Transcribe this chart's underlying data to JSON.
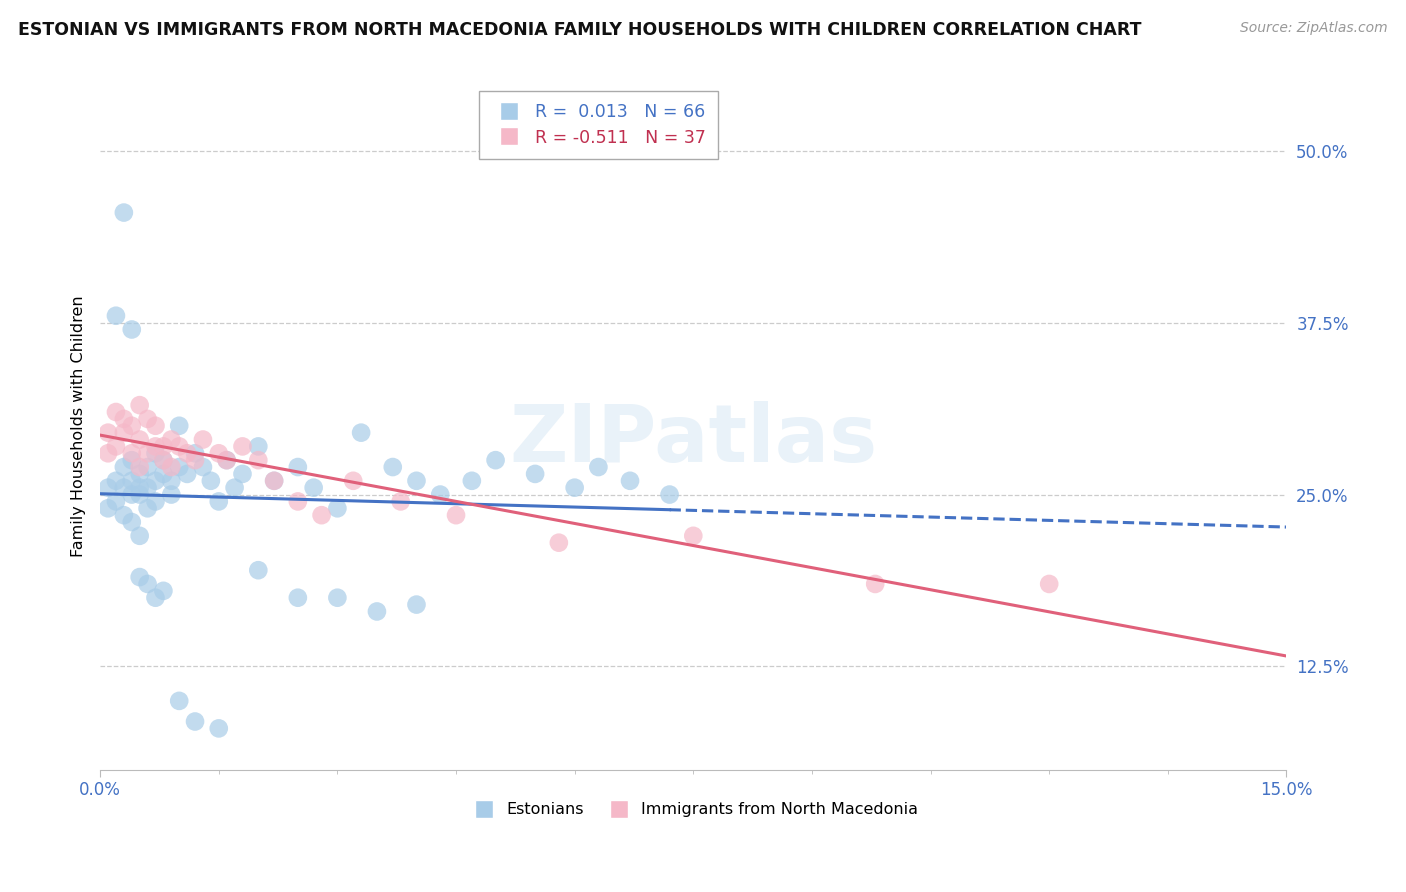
{
  "title": "ESTONIAN VS IMMIGRANTS FROM NORTH MACEDONIA FAMILY HOUSEHOLDS WITH CHILDREN CORRELATION CHART",
  "source": "Source: ZipAtlas.com",
  "ylabel": "Family Households with Children",
  "xlim": [
    0.0,
    0.15
  ],
  "ylim": [
    0.05,
    0.55
  ],
  "ytick_vals": [
    0.125,
    0.25,
    0.375,
    0.5
  ],
  "ytick_labels": [
    "12.5%",
    "25.0%",
    "37.5%",
    "50.0%"
  ],
  "xtick_labels": [
    "0.0%",
    "15.0%"
  ],
  "color_blue": "#a8cce8",
  "color_pink": "#f5b8c8",
  "line_blue_solid": "#4472c4",
  "line_blue_dash": "#4472c4",
  "line_pink": "#e0607a",
  "watermark": "ZIPatlas",
  "blue_R": 0.013,
  "blue_N": 66,
  "pink_R": -0.511,
  "pink_N": 37,
  "legend_label1": "R =  0.013   N = 66",
  "legend_label2": "R = -0.511   N = 37",
  "legend_color1": "#4472c4",
  "legend_color2": "#c03050",
  "legend_label_blue": "Estonians",
  "legend_label_pink": "Immigrants from North Macedonia",
  "title_color": "#111111",
  "source_color": "#999999",
  "tick_color": "#4472c4",
  "grid_color": "#cccccc",
  "marker_size": 180,
  "blue_x": [
    0.001,
    0.001,
    0.002,
    0.002,
    0.003,
    0.003,
    0.003,
    0.004,
    0.004,
    0.004,
    0.004,
    0.005,
    0.005,
    0.005,
    0.005,
    0.006,
    0.006,
    0.006,
    0.007,
    0.007,
    0.007,
    0.008,
    0.008,
    0.009,
    0.009,
    0.01,
    0.01,
    0.011,
    0.012,
    0.013,
    0.014,
    0.015,
    0.016,
    0.017,
    0.018,
    0.02,
    0.022,
    0.025,
    0.027,
    0.03,
    0.033,
    0.037,
    0.04,
    0.043,
    0.047,
    0.05,
    0.055,
    0.06,
    0.063,
    0.067,
    0.072,
    0.002,
    0.003,
    0.004,
    0.005,
    0.006,
    0.007,
    0.008,
    0.02,
    0.025,
    0.03,
    0.035,
    0.01,
    0.012,
    0.015,
    0.04
  ],
  "blue_y": [
    0.255,
    0.24,
    0.26,
    0.245,
    0.27,
    0.255,
    0.235,
    0.26,
    0.25,
    0.23,
    0.275,
    0.255,
    0.265,
    0.25,
    0.22,
    0.27,
    0.255,
    0.24,
    0.28,
    0.26,
    0.245,
    0.275,
    0.265,
    0.26,
    0.25,
    0.3,
    0.27,
    0.265,
    0.28,
    0.27,
    0.26,
    0.245,
    0.275,
    0.255,
    0.265,
    0.285,
    0.26,
    0.27,
    0.255,
    0.24,
    0.295,
    0.27,
    0.26,
    0.25,
    0.26,
    0.275,
    0.265,
    0.255,
    0.27,
    0.26,
    0.25,
    0.38,
    0.455,
    0.37,
    0.19,
    0.185,
    0.175,
    0.18,
    0.195,
    0.175,
    0.175,
    0.165,
    0.1,
    0.085,
    0.08,
    0.17
  ],
  "pink_x": [
    0.001,
    0.001,
    0.002,
    0.002,
    0.003,
    0.003,
    0.004,
    0.004,
    0.005,
    0.005,
    0.005,
    0.006,
    0.006,
    0.007,
    0.007,
    0.008,
    0.008,
    0.009,
    0.009,
    0.01,
    0.011,
    0.012,
    0.013,
    0.015,
    0.016,
    0.018,
    0.02,
    0.022,
    0.025,
    0.028,
    0.032,
    0.038,
    0.045,
    0.058,
    0.075,
    0.098,
    0.12
  ],
  "pink_y": [
    0.28,
    0.295,
    0.31,
    0.285,
    0.295,
    0.305,
    0.3,
    0.28,
    0.315,
    0.27,
    0.29,
    0.305,
    0.28,
    0.3,
    0.285,
    0.285,
    0.275,
    0.29,
    0.27,
    0.285,
    0.28,
    0.275,
    0.29,
    0.28,
    0.275,
    0.285,
    0.275,
    0.26,
    0.245,
    0.235,
    0.26,
    0.245,
    0.235,
    0.215,
    0.22,
    0.185,
    0.185
  ]
}
